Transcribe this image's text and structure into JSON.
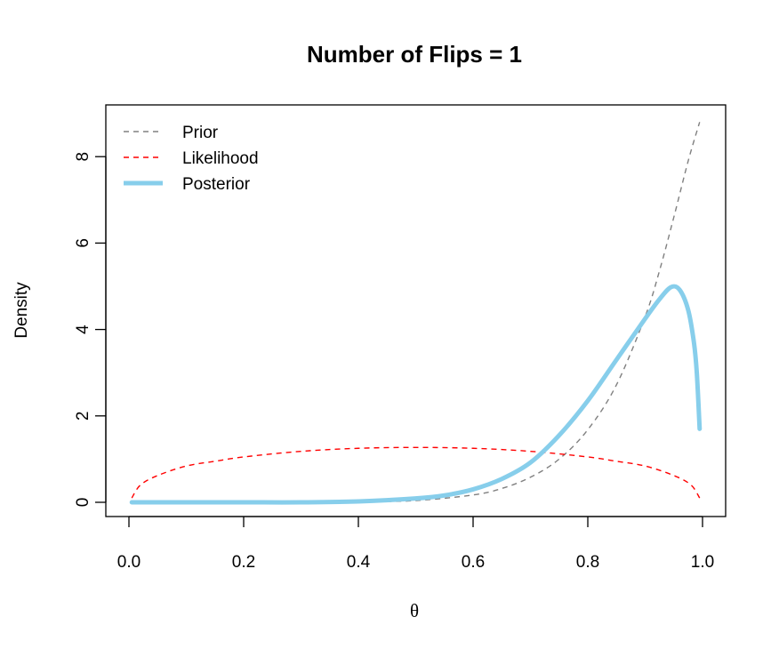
{
  "chart_data": {
    "type": "line",
    "title": "Number of Flips = 1",
    "xlabel": "θ",
    "ylabel": "Density",
    "xlim": [
      0,
      1
    ],
    "ylim": [
      0,
      9
    ],
    "x_ticks": [
      "0.0",
      "0.2",
      "0.4",
      "0.6",
      "0.8",
      "1.0"
    ],
    "y_ticks": [
      "0",
      "2",
      "4",
      "6",
      "8"
    ],
    "legend_position": "top-left",
    "grid": false,
    "series": [
      {
        "name": "Prior",
        "color": "#808080",
        "style": "dashed",
        "x": [
          0.005,
          0.1,
          0.2,
          0.3,
          0.4,
          0.5,
          0.6,
          0.65,
          0.7,
          0.75,
          0.8,
          0.85,
          0.9,
          0.925,
          0.95,
          0.975,
          0.995
        ],
        "y": [
          0.0,
          0.0,
          0.0,
          0.0,
          0.01,
          0.04,
          0.17,
          0.32,
          0.58,
          1.0,
          1.68,
          2.72,
          4.3,
          5.36,
          6.6,
          7.9,
          8.8
        ]
      },
      {
        "name": "Likelihood",
        "color": "#ff0000",
        "style": "dashed",
        "x": [
          0.005,
          0.02,
          0.05,
          0.1,
          0.15,
          0.2,
          0.3,
          0.4,
          0.5,
          0.6,
          0.7,
          0.8,
          0.85,
          0.9,
          0.95,
          0.98,
          0.995
        ],
        "y": [
          0.1,
          0.4,
          0.62,
          0.84,
          0.95,
          1.05,
          1.18,
          1.25,
          1.27,
          1.25,
          1.18,
          1.05,
          0.95,
          0.84,
          0.62,
          0.4,
          0.1
        ]
      },
      {
        "name": "Posterior",
        "color": "#87ceeb",
        "style": "solid",
        "x": [
          0.005,
          0.1,
          0.2,
          0.3,
          0.4,
          0.5,
          0.55,
          0.6,
          0.65,
          0.7,
          0.75,
          0.8,
          0.85,
          0.9,
          0.925,
          0.945,
          0.96,
          0.975,
          0.985,
          0.99,
          0.995
        ],
        "y": [
          0.0,
          0.0,
          0.0,
          0.0,
          0.02,
          0.09,
          0.16,
          0.3,
          0.54,
          0.92,
          1.55,
          2.35,
          3.3,
          4.25,
          4.7,
          4.98,
          4.92,
          4.45,
          3.7,
          3.0,
          1.7
        ]
      }
    ]
  }
}
